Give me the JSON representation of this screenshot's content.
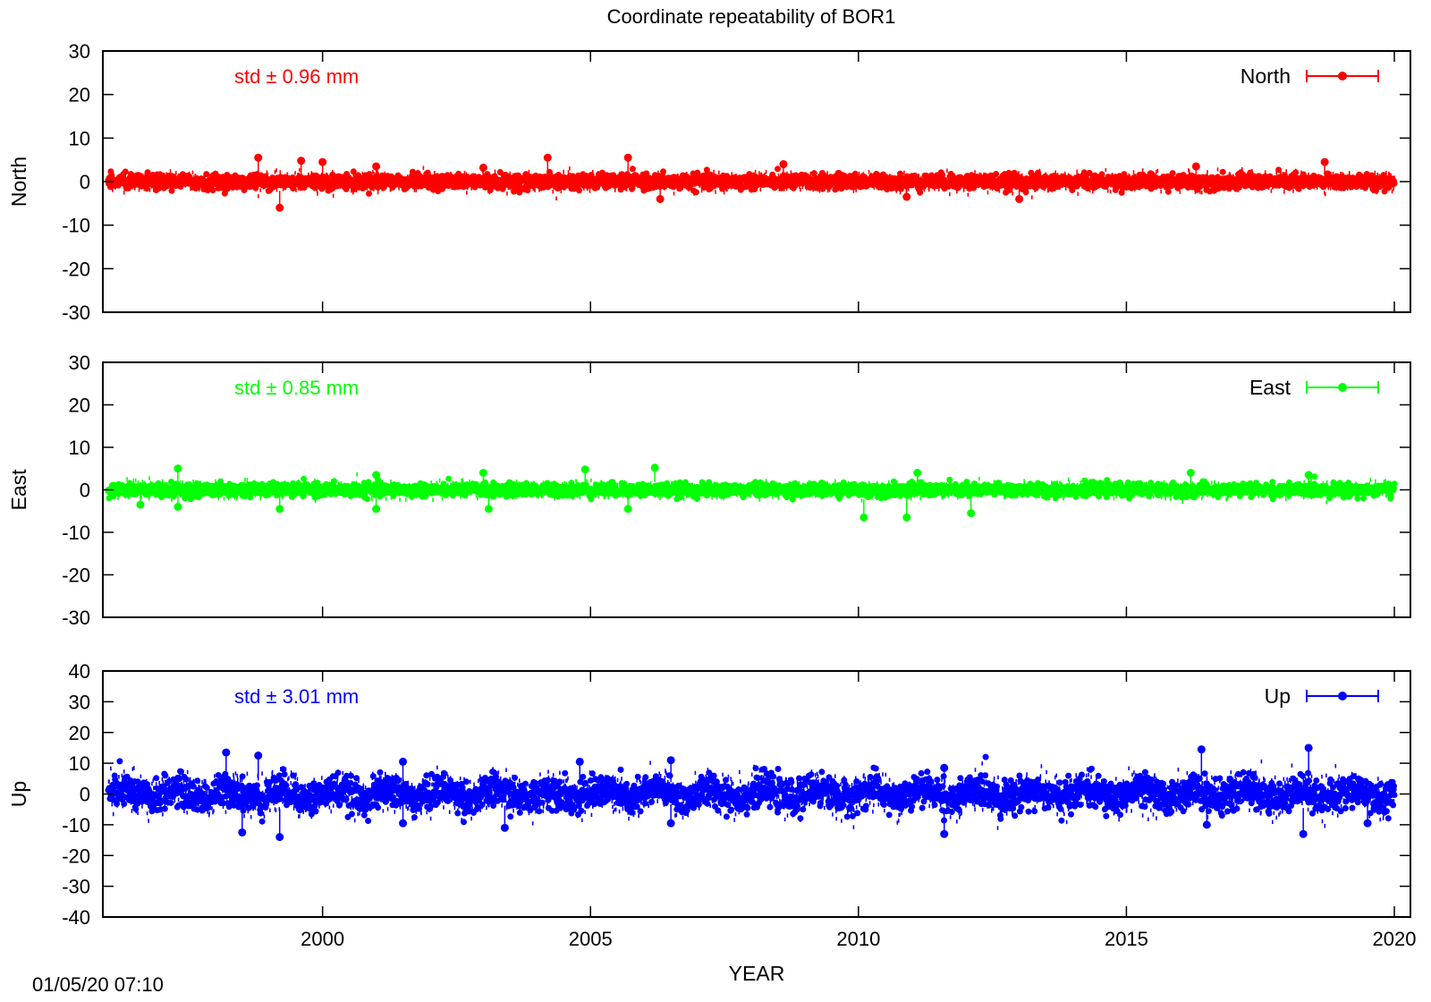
{
  "title": "Coordinate repeatability of BOR1",
  "timestamp": "01/05/20 07:10",
  "chart_data": [
    {
      "type": "scatter",
      "component": "North",
      "ylabel": "North",
      "xlabel": "",
      "xlim": [
        1995.9,
        2020.3
      ],
      "ylim": [
        -30,
        30
      ],
      "yticks": [
        -30,
        -20,
        -10,
        0,
        10,
        20,
        30
      ],
      "xticks": [
        2000,
        2005,
        2010,
        2015,
        2020
      ],
      "show_xtick_labels": false,
      "color": "#ff0000",
      "std_label": "std ± 0.96 mm",
      "legend": "North",
      "legend_position": "top-right",
      "grid": false,
      "series": [
        {
          "name": "North",
          "x_range": [
            1996.0,
            2020.0
          ],
          "y_std": 0.96,
          "y_mean": 0,
          "band_note": "dense daily solutions clustered around 0 mm",
          "outliers": [
            {
              "x": 1998.8,
              "y": 5.5
            },
            {
              "x": 1999.2,
              "y": -6.0
            },
            {
              "x": 1999.6,
              "y": 4.8
            },
            {
              "x": 2000.0,
              "y": 4.5
            },
            {
              "x": 2001.0,
              "y": 3.5
            },
            {
              "x": 2003.0,
              "y": 3.2
            },
            {
              "x": 2004.2,
              "y": 5.5
            },
            {
              "x": 2005.7,
              "y": 5.5
            },
            {
              "x": 2006.3,
              "y": -4.0
            },
            {
              "x": 2008.6,
              "y": 4.0
            },
            {
              "x": 2010.9,
              "y": -3.5
            },
            {
              "x": 2013.0,
              "y": -4.0
            },
            {
              "x": 2016.3,
              "y": 3.5
            },
            {
              "x": 2018.7,
              "y": 4.5
            }
          ]
        }
      ]
    },
    {
      "type": "scatter",
      "component": "East",
      "ylabel": "East",
      "xlabel": "",
      "xlim": [
        1995.9,
        2020.3
      ],
      "ylim": [
        -30,
        30
      ],
      "yticks": [
        -30,
        -20,
        -10,
        0,
        10,
        20,
        30
      ],
      "xticks": [
        2000,
        2005,
        2010,
        2015,
        2020
      ],
      "show_xtick_labels": false,
      "color": "#00ff00",
      "std_label": "std ± 0.85 mm",
      "legend": "East",
      "legend_position": "top-right",
      "grid": false,
      "series": [
        {
          "name": "East",
          "x_range": [
            1996.0,
            2020.0
          ],
          "y_std": 0.85,
          "y_mean": 0,
          "band_note": "dense daily solutions clustered around 0 mm",
          "outliers": [
            {
              "x": 1996.6,
              "y": -3.5
            },
            {
              "x": 1997.3,
              "y": 5.0
            },
            {
              "x": 1997.3,
              "y": -4.0
            },
            {
              "x": 1999.2,
              "y": -4.5
            },
            {
              "x": 2001.0,
              "y": 3.5
            },
            {
              "x": 2001.0,
              "y": -4.5
            },
            {
              "x": 2003.0,
              "y": 4.0
            },
            {
              "x": 2003.1,
              "y": -4.5
            },
            {
              "x": 2004.9,
              "y": 4.8
            },
            {
              "x": 2005.7,
              "y": -4.5
            },
            {
              "x": 2006.2,
              "y": 5.2
            },
            {
              "x": 2010.1,
              "y": -6.5
            },
            {
              "x": 2010.9,
              "y": -6.5
            },
            {
              "x": 2011.1,
              "y": 4.0
            },
            {
              "x": 2012.1,
              "y": -5.5
            },
            {
              "x": 2016.2,
              "y": 4.0
            },
            {
              "x": 2018.4,
              "y": 3.5
            }
          ]
        }
      ]
    },
    {
      "type": "scatter",
      "component": "Up",
      "ylabel": "Up",
      "xlabel": "YEAR",
      "xlim": [
        1995.9,
        2020.3
      ],
      "ylim": [
        -40,
        40
      ],
      "yticks": [
        -40,
        -30,
        -20,
        -10,
        0,
        10,
        20,
        30,
        40
      ],
      "xticks": [
        2000,
        2005,
        2010,
        2015,
        2020
      ],
      "show_xtick_labels": true,
      "color": "#0000ff",
      "std_label": "std ± 3.01 mm",
      "legend": "Up",
      "legend_position": "top-right",
      "grid": false,
      "series": [
        {
          "name": "Up",
          "x_range": [
            1996.0,
            2020.0
          ],
          "y_std": 3.01,
          "y_mean": 0,
          "band_note": "dense daily solutions clustered around 0 mm, seasonal variation",
          "outliers": [
            {
              "x": 1998.2,
              "y": 13.5
            },
            {
              "x": 1998.5,
              "y": -12.5
            },
            {
              "x": 1998.8,
              "y": 12.5
            },
            {
              "x": 1999.2,
              "y": -14.0
            },
            {
              "x": 2001.5,
              "y": 10.5
            },
            {
              "x": 2001.5,
              "y": -9.5
            },
            {
              "x": 2003.4,
              "y": -11.0
            },
            {
              "x": 2004.8,
              "y": 10.5
            },
            {
              "x": 2006.5,
              "y": 11.0
            },
            {
              "x": 2006.5,
              "y": -9.5
            },
            {
              "x": 2011.6,
              "y": 8.5
            },
            {
              "x": 2011.6,
              "y": -13.0
            },
            {
              "x": 2016.4,
              "y": 14.5
            },
            {
              "x": 2016.5,
              "y": -10.0
            },
            {
              "x": 2018.3,
              "y": -13.0
            },
            {
              "x": 2018.4,
              "y": 15.0
            },
            {
              "x": 2019.5,
              "y": -9.5
            }
          ]
        }
      ]
    }
  ]
}
